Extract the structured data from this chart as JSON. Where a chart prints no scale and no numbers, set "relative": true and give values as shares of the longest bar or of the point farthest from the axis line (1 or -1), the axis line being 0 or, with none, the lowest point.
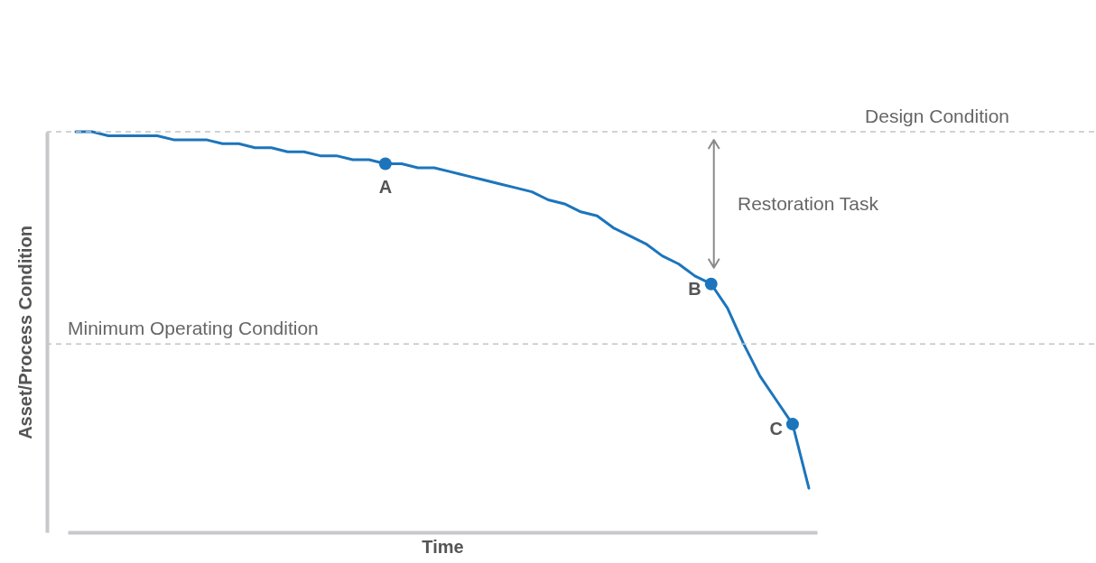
{
  "chart_data": {
    "type": "line",
    "relative": true,
    "xlabel": "Time",
    "ylabel": "Asset/Process Condition",
    "categories": [
      null,
      null,
      null,
      null,
      null,
      null,
      null,
      null,
      null,
      null,
      null,
      null,
      null,
      null,
      null,
      null,
      null,
      null,
      null,
      null,
      null,
      null,
      null,
      null,
      null,
      null,
      null,
      null,
      null,
      null,
      null,
      null,
      null,
      null,
      null,
      null,
      null,
      null,
      null,
      null,
      null,
      null,
      null,
      null,
      null,
      null
    ],
    "series": [
      {
        "color": "#1c75bc",
        "values": [
          1.0,
          1.0,
          0.99,
          0.99,
          0.99,
          0.99,
          0.98,
          0.98,
          0.98,
          0.97,
          0.97,
          0.96,
          0.96,
          0.95,
          0.95,
          0.94,
          0.94,
          0.93,
          0.93,
          0.92,
          0.92,
          0.91,
          0.91,
          0.9,
          0.89,
          0.88,
          0.87,
          0.86,
          0.85,
          0.83,
          0.82,
          0.8,
          0.79,
          0.76,
          0.74,
          0.72,
          0.69,
          0.67,
          0.64,
          0.62,
          0.56,
          0.47,
          0.39,
          0.33,
          0.27,
          0.11
        ]
      }
    ],
    "annotations": [
      "Restoration Task",
      "A",
      "B",
      "C"
    ],
    "ref_lines": [
      {
        "axis": "y",
        "value": 1.0,
        "label": "Design Condition",
        "color": "#c4c4c4",
        "line_style": "dashed"
      },
      {
        "axis": "y",
        "value": 0.47,
        "label": "Minimum Operating Condition",
        "color": "#c4c4c4",
        "line_style": "dashed"
      }
    ],
    "marker": "none",
    "grid": false,
    "tick_labels": false,
    "line_style": "solid"
  }
}
